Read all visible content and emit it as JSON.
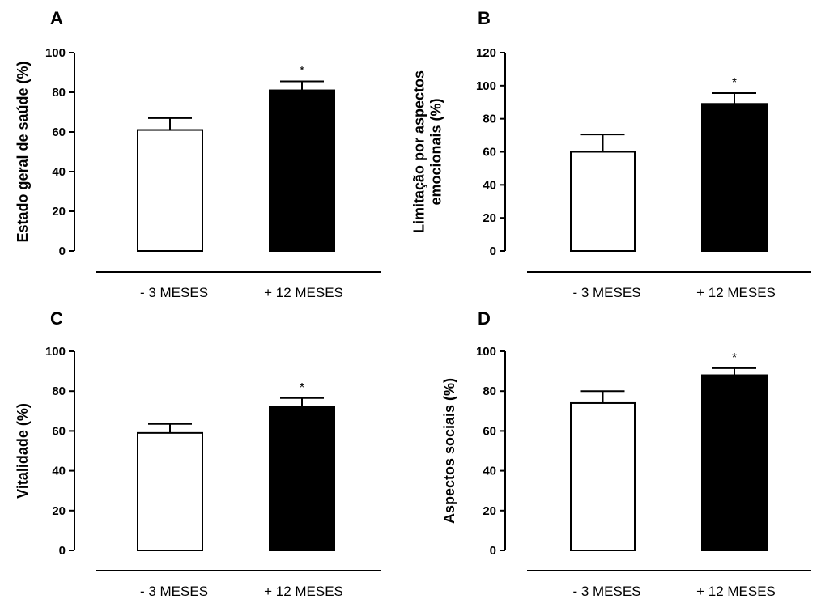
{
  "chart_data": [
    {
      "panel": "A",
      "type": "bar",
      "categories": [
        "- 3 MESES",
        "+ 12 MESES"
      ],
      "values": [
        61,
        81
      ],
      "errors": [
        6,
        4.5
      ],
      "significance": [
        "",
        "*"
      ],
      "ylabel_lines": [
        "Estado geral de saúde (%)"
      ],
      "ylim": [
        0,
        100
      ],
      "yticks": [
        0,
        20,
        40,
        60,
        80,
        100
      ],
      "bar_colors": [
        "#ffffff",
        "#000000"
      ]
    },
    {
      "panel": "B",
      "type": "bar",
      "categories": [
        "- 3 MESES",
        "+ 12 MESES"
      ],
      "values": [
        60,
        89
      ],
      "errors": [
        10.5,
        6.5
      ],
      "significance": [
        "",
        "*"
      ],
      "ylabel_lines": [
        "Limitação por aspectos",
        "emocionais (%)"
      ],
      "ylim": [
        0,
        120
      ],
      "yticks": [
        0,
        20,
        40,
        60,
        80,
        100,
        120
      ],
      "bar_colors": [
        "#ffffff",
        "#000000"
      ]
    },
    {
      "panel": "C",
      "type": "bar",
      "categories": [
        "- 3 MESES",
        "+ 12 MESES"
      ],
      "values": [
        59,
        72
      ],
      "errors": [
        4.5,
        4.5
      ],
      "significance": [
        "",
        "*"
      ],
      "ylabel_lines": [
        "Vitalidade (%)"
      ],
      "ylim": [
        0,
        100
      ],
      "yticks": [
        0,
        20,
        40,
        60,
        80,
        100
      ],
      "bar_colors": [
        "#ffffff",
        "#000000"
      ]
    },
    {
      "panel": "D",
      "type": "bar",
      "categories": [
        "- 3 MESES",
        "+ 12 MESES"
      ],
      "values": [
        74,
        88
      ],
      "errors": [
        6,
        3.5
      ],
      "significance": [
        "",
        "*"
      ],
      "ylabel_lines": [
        "Aspectos sociais  (%)"
      ],
      "ylim": [
        0,
        100
      ],
      "yticks": [
        0,
        20,
        40,
        60,
        80,
        100
      ],
      "bar_colors": [
        "#ffffff",
        "#000000"
      ]
    }
  ]
}
